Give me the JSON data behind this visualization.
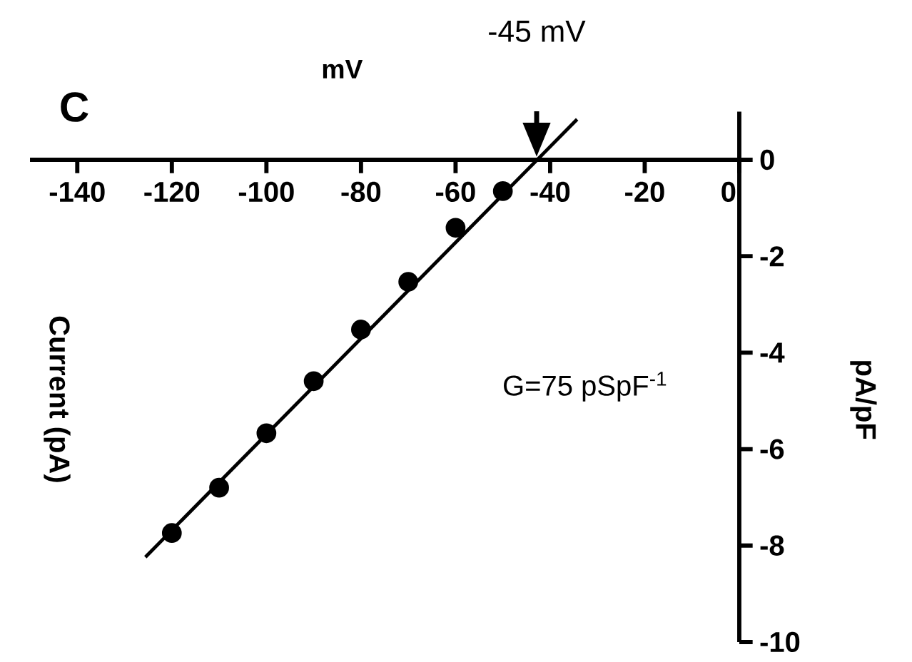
{
  "chart_data": {
    "type": "scatter",
    "xlabel": "mV",
    "ylabel": "pA/pF",
    "annotations": [
      "C",
      "-45 mV",
      "Current (pA)",
      "G=75 pSpF$^{-1}$"
    ],
    "xlim": [
      -150,
      0
    ],
    "ylim": [
      -10,
      1
    ],
    "xticks": [
      -140,
      -120,
      -100,
      -80,
      -60,
      -40,
      -20,
      0
    ],
    "yticks": [
      0,
      -2,
      -4,
      -6,
      -8,
      -10
    ],
    "grid": false,
    "series": [
      {
        "marker": "circle",
        "x": [
          -120,
          -110,
          -100,
          -90,
          -80,
          -70,
          -60,
          -50
        ],
        "values": [
          -7.74,
          -6.8,
          -5.67,
          -4.59,
          -3.52,
          -2.53,
          -1.41,
          -0.65
        ],
        "color": "#000000"
      },
      {
        "type": "line",
        "marker": "none",
        "x": [
          -125.6,
          -34.3
        ],
        "values": [
          -8.24,
          0.84
        ],
        "color": "#000000"
      }
    ]
  }
}
